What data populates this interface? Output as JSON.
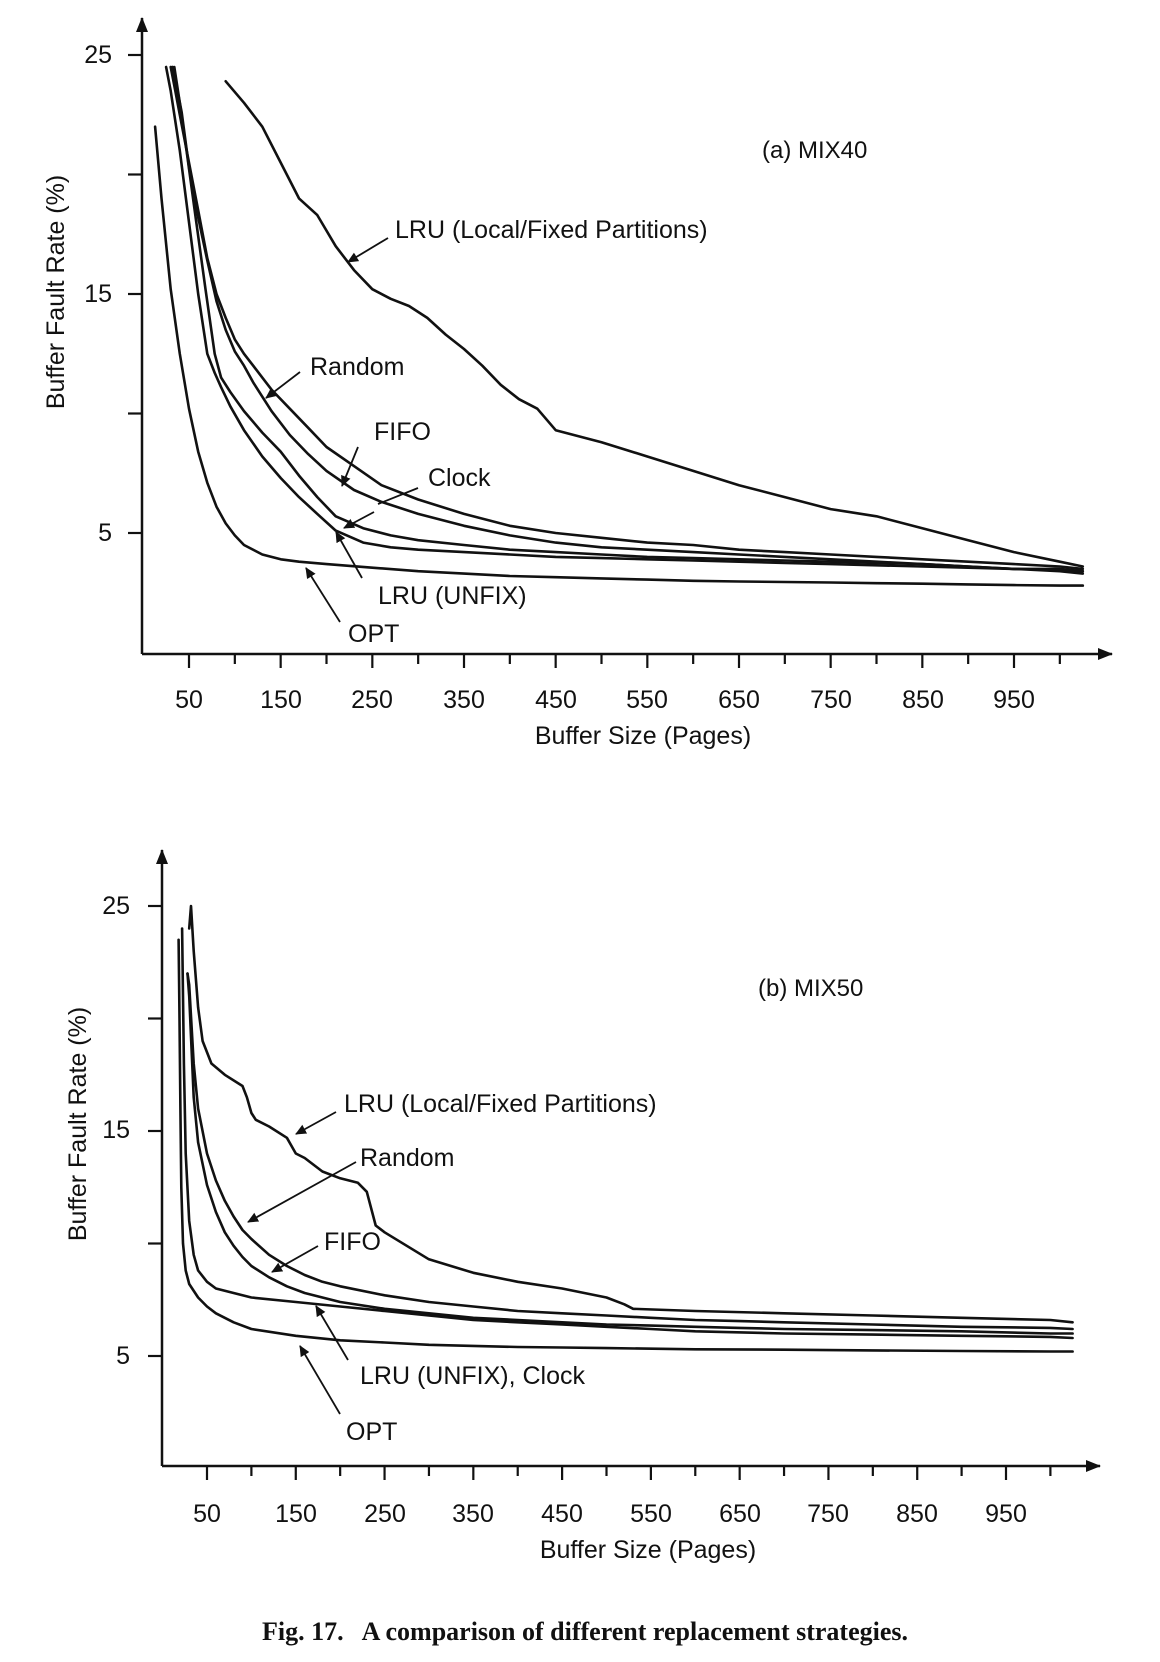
{
  "figure_caption": "Fig. 17.   A comparison of different replacement strategies.",
  "chart_data": [
    {
      "type": "line",
      "title": "(a) MIX40",
      "xlabel": "Buffer Size (Pages)",
      "ylabel": "Buffer Fault Rate (%)",
      "xlim": [
        0,
        1050
      ],
      "ylim": [
        0,
        27
      ],
      "xticks": [
        "50",
        "150",
        "250",
        "350",
        "450",
        "550",
        "650",
        "750",
        "850",
        "950"
      ],
      "yticks": [
        "25",
        "15",
        "5"
      ],
      "series": [
        {
          "name": "LRU (Local/Fixed Partitions)",
          "x": [
            90,
            110,
            130,
            150,
            170,
            190,
            210,
            230,
            250,
            270,
            290,
            310,
            330,
            350,
            370,
            390,
            410,
            430,
            450,
            500,
            550,
            600,
            650,
            700,
            750,
            800,
            850,
            900,
            950,
            1000,
            1025
          ],
          "y": [
            23.9,
            23,
            22,
            20.5,
            19,
            18.3,
            17,
            16,
            15.2,
            14.8,
            14.5,
            14,
            13.3,
            12.7,
            12,
            11.2,
            10.6,
            10.2,
            9.3,
            8.8,
            8.2,
            7.6,
            7,
            6.5,
            6,
            5.7,
            5.2,
            4.7,
            4.2,
            3.8,
            3.6
          ]
        },
        {
          "name": "Random",
          "x": [
            30,
            35,
            40,
            50,
            60,
            70,
            80,
            90,
            100,
            110,
            120,
            140,
            160,
            180,
            200,
            230,
            260,
            300,
            350,
            400,
            450,
            500,
            550,
            600,
            650,
            700,
            750,
            800,
            850,
            900,
            950,
            1000,
            1025
          ],
          "y": [
            24.5,
            23.5,
            22.5,
            20.5,
            18.5,
            16.5,
            15,
            14,
            13.1,
            12.5,
            12,
            11,
            10.2,
            9.4,
            8.6,
            7.8,
            7,
            6.4,
            5.8,
            5.3,
            5,
            4.8,
            4.6,
            4.5,
            4.3,
            4.2,
            4.1,
            4,
            3.9,
            3.8,
            3.7,
            3.6,
            3.5
          ]
        },
        {
          "name": "FIFO",
          "x": [
            32,
            37,
            42,
            50,
            60,
            70,
            80,
            90,
            100,
            110,
            120,
            140,
            160,
            180,
            200,
            230,
            260,
            300,
            350,
            400,
            450,
            500,
            550,
            600,
            650,
            700,
            750,
            800,
            850,
            900,
            950,
            1000,
            1025
          ],
          "y": [
            24.5,
            23.6,
            22.6,
            20.3,
            18.2,
            16.4,
            14.7,
            13.5,
            12.6,
            12,
            11.3,
            10.1,
            9.1,
            8.3,
            7.6,
            6.8,
            6.3,
            5.8,
            5.3,
            4.9,
            4.6,
            4.4,
            4.3,
            4.2,
            4.1,
            4,
            3.9,
            3.8,
            3.7,
            3.6,
            3.5,
            3.5,
            3.4
          ]
        },
        {
          "name": "Clock",
          "x": [
            34,
            40,
            48,
            58,
            68,
            78,
            85,
            95,
            110,
            130,
            150,
            170,
            190,
            210,
            240,
            270,
            300,
            350,
            400,
            450,
            500,
            550,
            600,
            650,
            700,
            750,
            800,
            850,
            900,
            950,
            1000,
            1025
          ],
          "y": [
            24.5,
            23,
            20.8,
            18,
            15.2,
            12.5,
            11.5,
            10.9,
            10.1,
            9.2,
            8.4,
            7.4,
            6.5,
            5.7,
            5.2,
            4.9,
            4.7,
            4.5,
            4.3,
            4.2,
            4.1,
            4,
            3.95,
            3.9,
            3.85,
            3.8,
            3.75,
            3.7,
            3.6,
            3.5,
            3.4,
            3.3
          ]
        },
        {
          "name": "LRU (UNFIX)",
          "x": [
            25,
            30,
            40,
            50,
            60,
            70,
            78,
            85,
            95,
            110,
            130,
            150,
            170,
            190,
            210,
            240,
            270,
            300,
            350,
            400,
            450,
            500,
            550,
            600,
            650,
            700,
            750,
            800,
            850,
            900,
            950,
            1000,
            1025
          ],
          "y": [
            24.5,
            23.5,
            21,
            18,
            15,
            12.5,
            11.7,
            11.1,
            10.3,
            9.3,
            8.2,
            7.3,
            6.5,
            5.8,
            5.1,
            4.6,
            4.4,
            4.3,
            4.2,
            4.1,
            4,
            3.95,
            3.9,
            3.85,
            3.8,
            3.75,
            3.7,
            3.65,
            3.6,
            3.55,
            3.5,
            3.45,
            3.4
          ]
        },
        {
          "name": "OPT",
          "x": [
            13,
            20,
            30,
            40,
            50,
            60,
            70,
            80,
            90,
            100,
            110,
            130,
            150,
            170,
            200,
            250,
            300,
            350,
            400,
            450,
            500,
            550,
            600,
            650,
            700,
            750,
            800,
            850,
            900,
            950,
            1000,
            1025
          ],
          "y": [
            22,
            19,
            15.2,
            12.5,
            10.2,
            8.4,
            7.1,
            6.1,
            5.4,
            4.9,
            4.5,
            4.1,
            3.9,
            3.8,
            3.7,
            3.55,
            3.4,
            3.3,
            3.2,
            3.15,
            3.1,
            3.05,
            3,
            2.97,
            2.95,
            2.93,
            2.9,
            2.88,
            2.85,
            2.82,
            2.8,
            2.8
          ]
        }
      ],
      "annotations": [
        "LRU (Local/Fixed Partitions)",
        "Random",
        "FIFO",
        "Clock",
        "LRU (UNFIX)",
        "OPT"
      ]
    },
    {
      "type": "line",
      "title": "(b) MIX50",
      "xlabel": "Buffer Size (Pages)",
      "ylabel": "Buffer Fault Rate (%)",
      "xlim": [
        0,
        1050
      ],
      "ylim": [
        0,
        27
      ],
      "xticks": [
        "50",
        "150",
        "250",
        "350",
        "450",
        "550",
        "650",
        "750",
        "850",
        "950"
      ],
      "yticks": [
        "25",
        "15",
        "5"
      ],
      "series": [
        {
          "name": "LRU (Local/Fixed Partitions)",
          "x": [
            30,
            32,
            35,
            40,
            45,
            55,
            70,
            90,
            95,
            100,
            105,
            120,
            140,
            150,
            160,
            180,
            200,
            220,
            230,
            240,
            250,
            300,
            350,
            400,
            450,
            500,
            520,
            530,
            600,
            700,
            800,
            900,
            1000,
            1025
          ],
          "y": [
            24,
            25,
            23,
            20.5,
            19,
            18,
            17.5,
            17,
            16.5,
            15.8,
            15.5,
            15.2,
            14.7,
            14,
            13.8,
            13.2,
            12.9,
            12.7,
            12.3,
            10.8,
            10.5,
            9.3,
            8.7,
            8.3,
            8,
            7.6,
            7.3,
            7.1,
            7,
            6.9,
            6.8,
            6.7,
            6.6,
            6.5
          ]
        },
        {
          "name": "Random",
          "x": [
            28,
            30,
            35,
            40,
            50,
            60,
            70,
            80,
            90,
            100,
            120,
            140,
            160,
            180,
            200,
            250,
            300,
            350,
            400,
            450,
            500,
            550,
            600,
            650,
            700,
            800,
            900,
            1000,
            1025
          ],
          "y": [
            22,
            21.5,
            18,
            16,
            14,
            12.8,
            11.9,
            11.2,
            10.6,
            10.2,
            9.5,
            9,
            8.6,
            8.3,
            8.1,
            7.7,
            7.4,
            7.2,
            7,
            6.9,
            6.8,
            6.7,
            6.6,
            6.55,
            6.5,
            6.4,
            6.3,
            6.25,
            6.2
          ]
        },
        {
          "name": "FIFO",
          "x": [
            28,
            30,
            35,
            40,
            50,
            60,
            70,
            80,
            90,
            100,
            120,
            140,
            160,
            180,
            200,
            250,
            300,
            350,
            400,
            450,
            500,
            550,
            600,
            650,
            700,
            800,
            900,
            1000,
            1025
          ],
          "y": [
            22,
            21,
            16.5,
            14.5,
            12.6,
            11.4,
            10.5,
            9.9,
            9.4,
            9,
            8.5,
            8.1,
            7.8,
            7.6,
            7.4,
            7.1,
            6.9,
            6.7,
            6.6,
            6.5,
            6.4,
            6.35,
            6.3,
            6.25,
            6.2,
            6.15,
            6.1,
            6,
            6
          ]
        },
        {
          "name": "LRU (UNFIX), Clock",
          "x": [
            22,
            24,
            26,
            30,
            35,
            40,
            50,
            60,
            80,
            100,
            150,
            200,
            250,
            300,
            350,
            400,
            450,
            500,
            550,
            600,
            700,
            800,
            900,
            1000,
            1025
          ],
          "y": [
            24,
            18,
            14,
            11,
            9.5,
            8.8,
            8.3,
            8,
            7.8,
            7.6,
            7.4,
            7.2,
            7,
            6.8,
            6.6,
            6.5,
            6.4,
            6.3,
            6.2,
            6.1,
            6,
            5.95,
            5.9,
            5.85,
            5.8
          ]
        },
        {
          "name": "OPT",
          "x": [
            18,
            19,
            20,
            21,
            23,
            26,
            30,
            40,
            50,
            60,
            80,
            100,
            150,
            200,
            250,
            300,
            350,
            400,
            450,
            500,
            600,
            700,
            800,
            900,
            1000,
            1025
          ],
          "y": [
            23.5,
            20,
            16,
            12.5,
            10,
            8.8,
            8.2,
            7.6,
            7.2,
            6.9,
            6.5,
            6.2,
            5.9,
            5.7,
            5.6,
            5.5,
            5.45,
            5.4,
            5.38,
            5.35,
            5.3,
            5.28,
            5.25,
            5.22,
            5.2,
            5.2
          ]
        }
      ],
      "annotations": [
        "LRU (Local/Fixed Partitions)",
        "Random",
        "FIFO",
        "LRU (UNFIX), Clock",
        "OPT"
      ]
    }
  ]
}
